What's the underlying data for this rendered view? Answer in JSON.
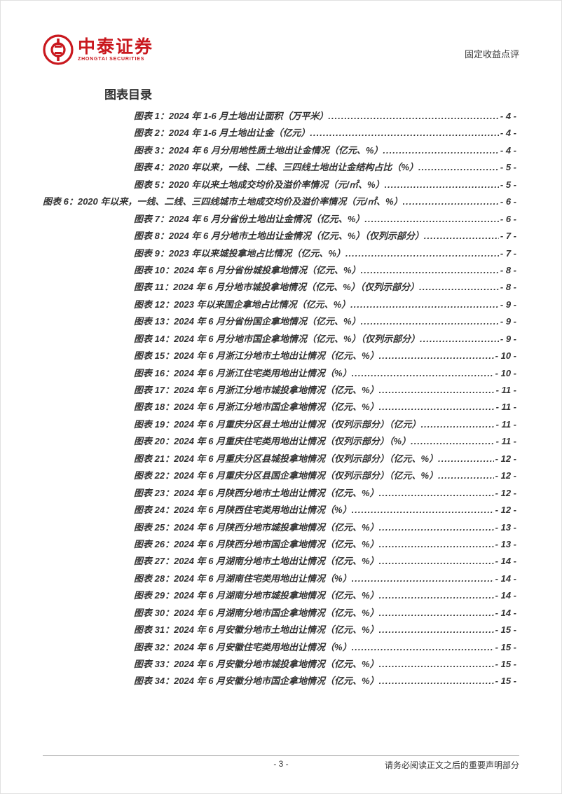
{
  "header": {
    "logo_cn": "中泰证券",
    "logo_en": "ZHONGTAI SECURITIES",
    "doc_type": "固定收益点评",
    "logo_color": "#c9181e"
  },
  "section_title": "图表目录",
  "toc": [
    {
      "label": "图表 1：2024 年 1-6 月土地出让面积（万平米）",
      "page": "- 4 -",
      "outdent": false
    },
    {
      "label": "图表 2：2024 年 1-6 月土地出让金（亿元）",
      "page": "- 4 -",
      "outdent": false
    },
    {
      "label": "图表 3：2024 年 6 月分用地性质土地出让金情况（亿元、%）",
      "page": "- 4 -",
      "outdent": false
    },
    {
      "label": "图表 4：2020 年以来，一线、二线、三四线土地出让金结构占比（%）",
      "page": "- 5 -",
      "outdent": false
    },
    {
      "label": "图表 5：2020 年以来土地成交均价及溢价率情况（元/㎡、%）",
      "page": "- 5 -",
      "outdent": false
    },
    {
      "label": "图表 6：2020 年以来，一线、二线、三四线城市土地成交均价及溢价率情况（元/㎡、%）",
      "page": "- 6 -",
      "outdent": true
    },
    {
      "label": "图表 7：2024 年 6 月分省份土地出让金情况（亿元、%）",
      "page": "- 6 -",
      "outdent": false
    },
    {
      "label": "图表 8：2024 年 6 月分地市土地出让金情况（亿元、%）（仅列示部分）",
      "page": "- 7 -",
      "outdent": false
    },
    {
      "label": "图表 9：2023 年以来城投拿地占比情况（亿元、%）",
      "page": "- 7 -",
      "outdent": false
    },
    {
      "label": "图表 10：2024 年 6 月分省份城投拿地情况（亿元、%）",
      "page": "- 8 -",
      "outdent": false
    },
    {
      "label": "图表 11：2024 年 6 月分地市城投拿地情况（亿元、%）（仅列示部分）",
      "page": "- 8 -",
      "outdent": false
    },
    {
      "label": "图表 12：2023 年以来国企拿地占比情况（亿元、%）",
      "page": "- 9 -",
      "outdent": false
    },
    {
      "label": "图表 13：2024 年 6 月分省份国企拿地情况（亿元、%）",
      "page": "- 9 -",
      "outdent": false
    },
    {
      "label": "图表 14：2024 年 6 月分地市国企拿地情况（亿元、%）（仅列示部分）",
      "page": "- 9 -",
      "outdent": false
    },
    {
      "label": "图表 15：2024 年 6 月浙江分地市土地出让情况（亿元、%）",
      "page": "- 10 -",
      "outdent": false
    },
    {
      "label": "图表 16：2024 年 6 月浙江住宅类用地出让情况（%）",
      "page": "- 10 -",
      "outdent": false
    },
    {
      "label": "图表 17：2024 年 6 月浙江分地市城投拿地情况（亿元、%）",
      "page": "- 11 -",
      "outdent": false
    },
    {
      "label": "图表 18：2024 年 6 月浙江分地市国企拿地情况（亿元、%）",
      "page": "- 11 -",
      "outdent": false
    },
    {
      "label": "图表 19：2024 年 6 月重庆分区县土地出让情况（仅列示部分）（亿元）",
      "page": "- 11 -",
      "outdent": false
    },
    {
      "label": "图表 20：2024 年 6 月重庆住宅类用地出让情况（仅列示部分）（%）",
      "page": "- 11 -",
      "outdent": false
    },
    {
      "label": "图表 21：2024 年 6 月重庆分区县城投拿地情况（仅列示部分）（亿元、%）",
      "page": "- 12 -",
      "outdent": false
    },
    {
      "label": "图表 22：2024 年 6 月重庆分区县国企拿地情况（仅列示部分）（亿元、%）",
      "page": "- 12 -",
      "outdent": false
    },
    {
      "label": "图表 23：2024 年 6 月陕西分地市土地出让情况（亿元、%）",
      "page": "- 12 -",
      "outdent": false
    },
    {
      "label": "图表 24：2024 年 6 月陕西住宅类用地出让情况（%）",
      "page": "- 12 -",
      "outdent": false
    },
    {
      "label": "图表 25：2024 年 6 月陕西分地市城投拿地情况（亿元、%）",
      "page": "- 13 -",
      "outdent": false
    },
    {
      "label": "图表 26：2024 年 6 月陕西分地市国企拿地情况（亿元、%）",
      "page": "- 13 -",
      "outdent": false
    },
    {
      "label": "图表 27：2024 年 6 月湖南分地市土地出让情况（亿元、%）",
      "page": "- 14 -",
      "outdent": false
    },
    {
      "label": "图表 28：2024 年 6 月湖南住宅类用地出让情况（%）",
      "page": "- 14 -",
      "outdent": false
    },
    {
      "label": "图表 29：2024 年 6 月湖南分地市城投拿地情况（亿元、%）",
      "page": "- 14 -",
      "outdent": false
    },
    {
      "label": "图表 30：2024 年 6 月湖南分地市国企拿地情况（亿元、%）",
      "page": "- 14 -",
      "outdent": false
    },
    {
      "label": "图表 31：2024 年 6 月安徽分地市土地出让情况（亿元、%）",
      "page": "- 15 -",
      "outdent": false
    },
    {
      "label": "图表 32：2024 年 6 月安徽住宅类用地出让情况（%）",
      "page": "- 15 -",
      "outdent": false
    },
    {
      "label": "图表 33：2024 年 6 月安徽分地市城投拿地情况（亿元、%）",
      "page": "- 15 -",
      "outdent": false
    },
    {
      "label": "图表 34：2024 年 6 月安徽分地市国企拿地情况（亿元、%）",
      "page": "- 15 -",
      "outdent": false
    }
  ],
  "footer": {
    "page_num": "- 3 -",
    "disclaimer": "请务必阅读正文之后的重要声明部分"
  }
}
